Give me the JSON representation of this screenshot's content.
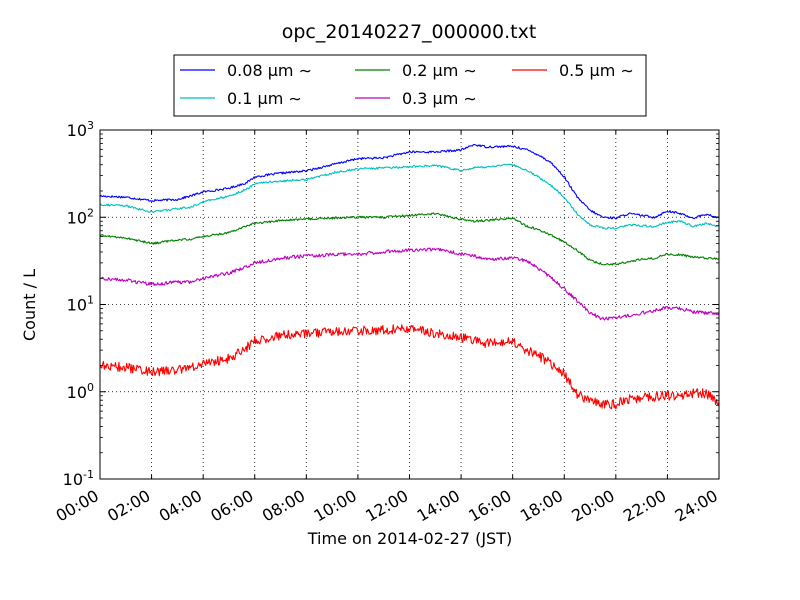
{
  "chart_data": {
    "type": "line",
    "title": "opc_20140227_000000.txt",
    "xlabel": "Time on 2014-02-27 (JST)",
    "ylabel": "Count / L",
    "x_unit": "hour",
    "xlim": [
      0,
      24
    ],
    "ylim": [
      0.1,
      1000
    ],
    "yscale": "log",
    "grid": true,
    "legend_position": "top-center",
    "x_tick_labels": [
      "00:00",
      "02:00",
      "04:00",
      "06:00",
      "08:00",
      "10:00",
      "12:00",
      "14:00",
      "16:00",
      "18:00",
      "20:00",
      "22:00",
      "24:00"
    ],
    "x_ticks": [
      0,
      2,
      4,
      6,
      8,
      10,
      12,
      14,
      16,
      18,
      20,
      22,
      24
    ],
    "y_ticks": [
      {
        "value": 0.1,
        "base": "10",
        "exp": "-1"
      },
      {
        "value": 1,
        "base": "10",
        "exp": "0"
      },
      {
        "value": 10,
        "base": "10",
        "exp": "1"
      },
      {
        "value": 100,
        "base": "10",
        "exp": "2"
      },
      {
        "value": 1000,
        "base": "10",
        "exp": "3"
      }
    ],
    "x": [
      0,
      1,
      2,
      3,
      3.5,
      4,
      5,
      5.7,
      6,
      7,
      8,
      9,
      10,
      11,
      12,
      13,
      14,
      14.5,
      15,
      16,
      16.5,
      17,
      17.5,
      18,
      18.5,
      19,
      19.5,
      20,
      20.5,
      21,
      21.5,
      22,
      22.5,
      23,
      23.5,
      24
    ],
    "series": [
      {
        "name": "0.08 μm ∼",
        "color": "#0000ff",
        "values": [
          175,
          170,
          155,
          160,
          175,
          195,
          215,
          250,
          290,
          320,
          340,
          400,
          470,
          480,
          560,
          560,
          590,
          680,
          640,
          650,
          600,
          520,
          420,
          290,
          170,
          120,
          100,
          98,
          110,
          105,
          100,
          118,
          110,
          98,
          108,
          98
        ]
      },
      {
        "name": "0.1 μm ∼",
        "color": "#00bfbf",
        "values": [
          140,
          135,
          115,
          125,
          130,
          150,
          175,
          210,
          245,
          260,
          270,
          320,
          360,
          365,
          380,
          395,
          340,
          370,
          380,
          400,
          350,
          290,
          230,
          170,
          110,
          82,
          75,
          75,
          82,
          80,
          78,
          88,
          90,
          78,
          85,
          78
        ]
      },
      {
        "name": "0.2 μm ∼",
        "color": "#008000",
        "values": [
          62,
          58,
          50,
          55,
          56,
          60,
          67,
          80,
          85,
          92,
          95,
          98,
          100,
          100,
          105,
          110,
          95,
          90,
          92,
          98,
          80,
          72,
          62,
          52,
          42,
          32,
          29,
          29,
          31,
          33,
          34,
          38,
          37,
          35,
          34,
          33
        ]
      },
      {
        "name": "0.3 μm ∼",
        "color": "#bf00bf",
        "values": [
          20,
          19,
          17,
          18,
          18,
          20,
          23,
          27,
          30,
          34,
          36,
          37,
          38,
          40,
          42,
          43,
          38,
          36,
          33,
          34,
          32,
          26,
          20,
          15,
          11,
          8,
          6.8,
          7,
          7.5,
          8,
          8.5,
          9.3,
          9,
          8.2,
          8,
          7.8
        ]
      },
      {
        "name": "0.5 μm ∼",
        "color": "#ff0000",
        "values": [
          2.0,
          1.9,
          1.7,
          1.75,
          1.9,
          2.1,
          2.4,
          3.2,
          3.9,
          4.4,
          4.6,
          4.9,
          5.0,
          5.1,
          5.4,
          4.6,
          4.2,
          3.9,
          3.6,
          3.7,
          3.0,
          2.6,
          2.1,
          1.6,
          0.95,
          0.78,
          0.72,
          0.72,
          0.82,
          0.86,
          0.88,
          0.9,
          0.92,
          0.95,
          0.97,
          0.75
        ]
      }
    ]
  }
}
